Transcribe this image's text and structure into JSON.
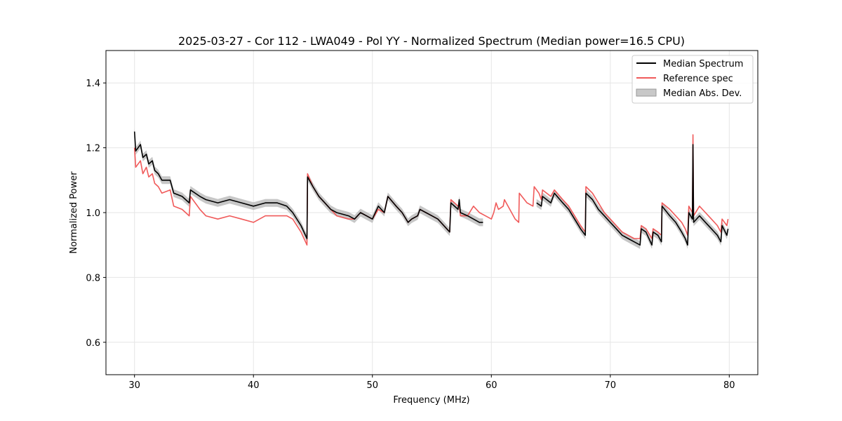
{
  "chart_data": {
    "type": "line",
    "title": "2025-03-27 - Cor 112 - LWA049 - Pol YY - Normalized Spectrum (Median power=16.5 CPU)",
    "xlabel": "Frequency (MHz)",
    "ylabel": "Normalized Power",
    "xlim": [
      27.6,
      82.4
    ],
    "ylim": [
      0.5,
      1.5
    ],
    "xticks": [
      30,
      40,
      50,
      60,
      70,
      80
    ],
    "xtick_labels": [
      "30",
      "40",
      "50",
      "60",
      "70",
      "80"
    ],
    "yticks": [
      0.6,
      0.8,
      1.0,
      1.2,
      1.4
    ],
    "ytick_labels": [
      "0.6",
      "0.8",
      "1.0",
      "1.2",
      "1.4"
    ],
    "grid": true,
    "legend_position": "top-right",
    "legend": [
      "Median Spectrum",
      "Reference spec",
      "Median Abs. Dev."
    ],
    "colors": {
      "median": "#000000",
      "reference": "#f05a5a",
      "mad": "#b4b4b4",
      "grid": "#e6e6e6"
    },
    "series": [
      {
        "name": "Median Spectrum",
        "segments": [
          [
            [
              30.0,
              1.25
            ],
            [
              30.1,
              1.19
            ],
            [
              30.5,
              1.21
            ],
            [
              30.7,
              1.17
            ],
            [
              31.0,
              1.18
            ],
            [
              31.2,
              1.15
            ],
            [
              31.5,
              1.16
            ],
            [
              31.7,
              1.13
            ],
            [
              32.0,
              1.12
            ],
            [
              32.3,
              1.1
            ],
            [
              33.0,
              1.1
            ],
            [
              33.3,
              1.06
            ],
            [
              34.0,
              1.05
            ],
            [
              34.6,
              1.03
            ],
            [
              34.7,
              1.07
            ],
            [
              35.5,
              1.05
            ],
            [
              36.0,
              1.04
            ],
            [
              37.0,
              1.03
            ],
            [
              38.0,
              1.04
            ],
            [
              39.0,
              1.03
            ],
            [
              40.0,
              1.02
            ],
            [
              41.0,
              1.03
            ],
            [
              42.0,
              1.03
            ],
            [
              42.8,
              1.02
            ],
            [
              43.3,
              1.0
            ],
            [
              44.0,
              0.96
            ],
            [
              44.5,
              0.92
            ],
            [
              44.55,
              1.11
            ],
            [
              45.0,
              1.08
            ],
            [
              45.5,
              1.05
            ],
            [
              46.0,
              1.03
            ],
            [
              46.5,
              1.01
            ],
            [
              47.0,
              1.0
            ],
            [
              48.0,
              0.99
            ],
            [
              48.5,
              0.98
            ],
            [
              49.0,
              1.0
            ],
            [
              49.5,
              0.99
            ],
            [
              50.0,
              0.98
            ],
            [
              50.5,
              1.02
            ],
            [
              51.0,
              1.0
            ],
            [
              51.3,
              1.05
            ],
            [
              52.0,
              1.02
            ],
            [
              52.5,
              1.0
            ],
            [
              53.0,
              0.97
            ],
            [
              53.3,
              0.98
            ],
            [
              53.8,
              0.99
            ],
            [
              54.0,
              1.01
            ],
            [
              54.5,
              1.0
            ],
            [
              55.0,
              0.99
            ],
            [
              55.5,
              0.98
            ],
            [
              56.0,
              0.96
            ],
            [
              56.5,
              0.94
            ],
            [
              56.6,
              1.03
            ],
            [
              57.2,
              1.01
            ],
            [
              57.3,
              1.04
            ],
            [
              57.4,
              1.0
            ],
            [
              58.0,
              0.99
            ],
            [
              58.5,
              0.98
            ],
            [
              59.0,
              0.97
            ],
            [
              59.3,
              0.97
            ]
          ],
          [
            [
              63.8,
              1.03
            ],
            [
              64.2,
              1.02
            ],
            [
              64.3,
              1.05
            ],
            [
              65.0,
              1.03
            ],
            [
              65.3,
              1.06
            ],
            [
              66.0,
              1.03
            ],
            [
              66.5,
              1.01
            ],
            [
              67.0,
              0.98
            ],
            [
              67.5,
              0.95
            ],
            [
              67.9,
              0.93
            ],
            [
              67.95,
              1.06
            ],
            [
              68.5,
              1.04
            ],
            [
              69.0,
              1.01
            ],
            [
              69.5,
              0.99
            ],
            [
              70.0,
              0.97
            ],
            [
              70.5,
              0.95
            ],
            [
              71.0,
              0.93
            ],
            [
              71.5,
              0.92
            ],
            [
              72.0,
              0.91
            ],
            [
              72.5,
              0.9
            ],
            [
              72.6,
              0.95
            ],
            [
              73.0,
              0.94
            ],
            [
              73.5,
              0.9
            ],
            [
              73.6,
              0.94
            ],
            [
              74.0,
              0.93
            ],
            [
              74.3,
              0.91
            ],
            [
              74.35,
              1.02
            ],
            [
              75.0,
              0.99
            ],
            [
              75.5,
              0.97
            ],
            [
              76.0,
              0.94
            ],
            [
              76.3,
              0.92
            ],
            [
              76.5,
              0.9
            ],
            [
              76.6,
              1.0
            ],
            [
              76.9,
              0.98
            ],
            [
              76.95,
              1.21
            ],
            [
              77.0,
              0.97
            ],
            [
              77.5,
              0.99
            ],
            [
              78.0,
              0.97
            ],
            [
              78.5,
              0.95
            ],
            [
              79.0,
              0.93
            ],
            [
              79.3,
              0.91
            ],
            [
              79.4,
              0.96
            ],
            [
              79.8,
              0.93
            ],
            [
              79.9,
              0.95
            ]
          ]
        ]
      },
      {
        "name": "Reference spec",
        "segments": [
          [
            [
              30.0,
              1.2
            ],
            [
              30.1,
              1.14
            ],
            [
              30.5,
              1.16
            ],
            [
              30.7,
              1.12
            ],
            [
              31.0,
              1.14
            ],
            [
              31.2,
              1.11
            ],
            [
              31.5,
              1.12
            ],
            [
              31.7,
              1.09
            ],
            [
              32.0,
              1.08
            ],
            [
              32.3,
              1.06
            ],
            [
              33.0,
              1.07
            ],
            [
              33.3,
              1.02
            ],
            [
              34.0,
              1.01
            ],
            [
              34.6,
              0.99
            ],
            [
              34.7,
              1.05
            ],
            [
              35.5,
              1.01
            ],
            [
              36.0,
              0.99
            ],
            [
              37.0,
              0.98
            ],
            [
              38.0,
              0.99
            ],
            [
              39.0,
              0.98
            ],
            [
              40.0,
              0.97
            ],
            [
              41.0,
              0.99
            ],
            [
              42.0,
              0.99
            ],
            [
              42.8,
              0.99
            ],
            [
              43.3,
              0.98
            ],
            [
              44.0,
              0.94
            ],
            [
              44.5,
              0.9
            ],
            [
              44.55,
              1.12
            ],
            [
              45.0,
              1.08
            ],
            [
              45.5,
              1.05
            ],
            [
              46.0,
              1.03
            ],
            [
              46.5,
              1.01
            ],
            [
              47.0,
              0.99
            ],
            [
              48.0,
              0.98
            ],
            [
              48.5,
              0.98
            ],
            [
              49.0,
              1.0
            ],
            [
              49.5,
              0.99
            ],
            [
              50.0,
              0.98
            ],
            [
              50.5,
              1.01
            ],
            [
              51.0,
              1.0
            ],
            [
              51.3,
              1.05
            ],
            [
              52.0,
              1.02
            ],
            [
              52.5,
              1.0
            ],
            [
              53.0,
              0.97
            ],
            [
              53.3,
              0.98
            ],
            [
              53.8,
              0.99
            ],
            [
              54.0,
              1.01
            ],
            [
              54.5,
              1.0
            ],
            [
              55.0,
              0.99
            ],
            [
              55.5,
              0.98
            ],
            [
              56.0,
              0.96
            ],
            [
              56.5,
              0.94
            ],
            [
              56.6,
              1.04
            ],
            [
              57.2,
              1.02
            ],
            [
              57.3,
              1.02
            ],
            [
              57.4,
              0.99
            ],
            [
              58.0,
              0.99
            ],
            [
              58.5,
              1.02
            ],
            [
              59.0,
              1.0
            ],
            [
              59.5,
              0.99
            ],
            [
              60.0,
              0.98
            ],
            [
              60.2,
              1.0
            ],
            [
              60.4,
              1.03
            ],
            [
              60.6,
              1.01
            ],
            [
              61.0,
              1.02
            ],
            [
              61.1,
              1.04
            ],
            [
              62.0,
              0.98
            ],
            [
              62.3,
              0.97
            ],
            [
              62.35,
              1.06
            ],
            [
              63.0,
              1.03
            ],
            [
              63.5,
              1.02
            ],
            [
              63.6,
              1.08
            ],
            [
              64.0,
              1.06
            ],
            [
              64.2,
              1.04
            ],
            [
              64.3,
              1.07
            ],
            [
              65.0,
              1.05
            ],
            [
              65.3,
              1.07
            ],
            [
              66.0,
              1.04
            ],
            [
              66.5,
              1.02
            ],
            [
              67.0,
              0.99
            ],
            [
              67.5,
              0.96
            ],
            [
              67.9,
              0.94
            ],
            [
              67.95,
              1.08
            ],
            [
              68.5,
              1.06
            ],
            [
              69.0,
              1.03
            ],
            [
              69.5,
              1.0
            ],
            [
              70.0,
              0.98
            ],
            [
              70.5,
              0.96
            ],
            [
              71.0,
              0.94
            ],
            [
              71.5,
              0.93
            ],
            [
              72.0,
              0.92
            ],
            [
              72.5,
              0.92
            ],
            [
              72.6,
              0.96
            ],
            [
              73.0,
              0.95
            ],
            [
              73.5,
              0.92
            ],
            [
              73.6,
              0.95
            ],
            [
              74.0,
              0.94
            ],
            [
              74.3,
              0.93
            ],
            [
              74.35,
              1.03
            ],
            [
              75.0,
              1.01
            ],
            [
              75.5,
              0.99
            ],
            [
              76.0,
              0.97
            ],
            [
              76.3,
              0.95
            ],
            [
              76.5,
              0.93
            ],
            [
              76.6,
              1.02
            ],
            [
              76.9,
              1.0
            ],
            [
              76.95,
              1.24
            ],
            [
              77.0,
              0.99
            ],
            [
              77.5,
              1.02
            ],
            [
              78.0,
              1.0
            ],
            [
              78.5,
              0.98
            ],
            [
              79.0,
              0.96
            ],
            [
              79.3,
              0.94
            ],
            [
              79.4,
              0.98
            ],
            [
              79.8,
              0.96
            ],
            [
              79.9,
              0.98
            ]
          ]
        ]
      }
    ],
    "mad_halfwidth": 0.012
  }
}
